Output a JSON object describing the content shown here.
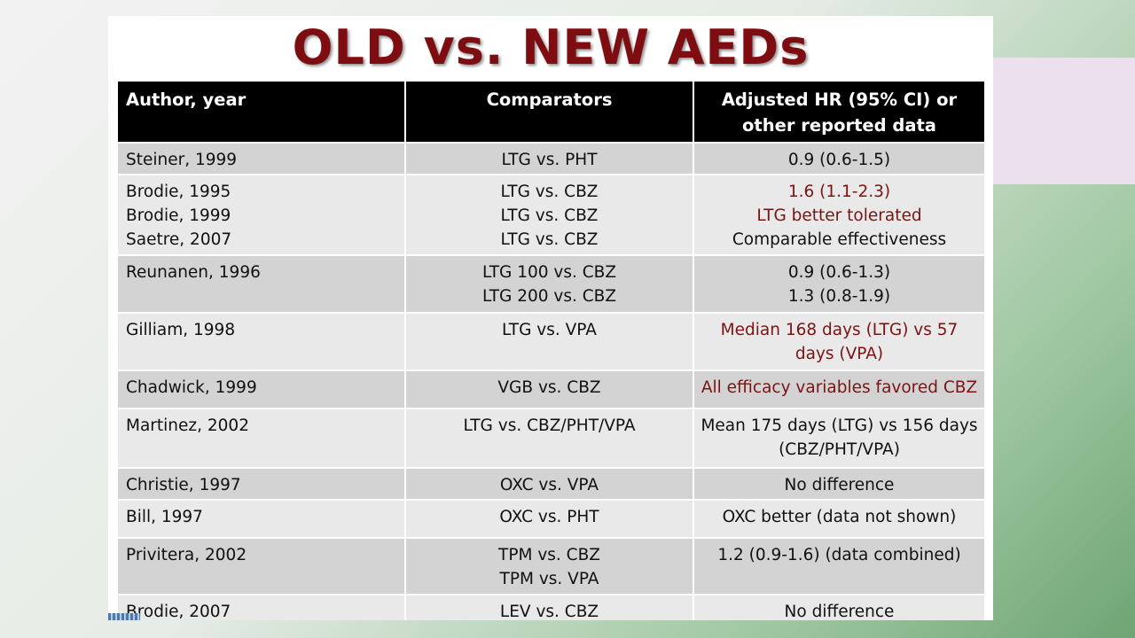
{
  "header": {
    "title": "OLD vs. NEW AEDs"
  },
  "table": {
    "headers": [
      [
        "Author, year"
      ],
      [
        "Comparators"
      ],
      [
        "Adjusted HR (95% CI) or",
        "other reported data"
      ]
    ],
    "rows": [
      {
        "author": [
          "Steiner, 1999"
        ],
        "comparators": [
          "LTG vs. PHT"
        ],
        "result": [
          {
            "text": "0.9 (0.6-1.5)",
            "color": "#111111"
          }
        ]
      },
      {
        "author": [
          "Brodie, 1995",
          "Brodie, 1999",
          "Saetre, 2007"
        ],
        "comparators": [
          "LTG vs. CBZ",
          "LTG vs. CBZ",
          "LTG vs. CBZ"
        ],
        "result": [
          {
            "text": "1.6 (1.1-2.3)",
            "color": "#7a1414"
          },
          {
            "text": "LTG better tolerated",
            "color": "#7a1414"
          },
          {
            "text": "Comparable effectiveness",
            "color": "#111111"
          }
        ]
      },
      {
        "author": [
          "Reunanen, 1996"
        ],
        "comparators": [
          "LTG 100 vs. CBZ",
          "LTG 200 vs. CBZ"
        ],
        "result": [
          {
            "text": "0.9 (0.6-1.3)",
            "color": "#111111"
          },
          {
            "text": "1.3 (0.8-1.9)",
            "color": "#111111"
          }
        ]
      },
      {
        "author": [
          "Gilliam, 1998"
        ],
        "comparators": [
          "LTG vs. VPA"
        ],
        "result": [
          {
            "text": "Median 168 days (LTG) vs 57",
            "color": "#7a1414"
          },
          {
            "text": "days (VPA)",
            "color": "#7a1414"
          }
        ]
      },
      {
        "author": [
          "Chadwick, 1999"
        ],
        "comparators": [
          "VGB vs. CBZ"
        ],
        "result": [
          {
            "text": "All efficacy variables favored CBZ",
            "color": "#7a1414"
          }
        ]
      },
      {
        "author": [
          "Martinez, 2002"
        ],
        "comparators": [
          "LTG vs. CBZ/PHT/VPA"
        ],
        "result": [
          {
            "text": "Mean 175 days (LTG) vs 156 days",
            "color": "#111111"
          },
          {
            "text": "(CBZ/PHT/VPA)",
            "color": "#111111"
          }
        ]
      },
      {
        "author": [
          "Christie, 1997"
        ],
        "comparators": [
          "OXC vs. VPA"
        ],
        "result": [
          {
            "text": "No difference",
            "color": "#111111"
          }
        ]
      },
      {
        "author": [
          "Bill, 1997"
        ],
        "comparators": [
          "OXC vs. PHT"
        ],
        "result": [
          {
            "text": "OXC better (data not shown)",
            "color": "#111111"
          }
        ]
      },
      {
        "author": [
          "Privitera, 2002"
        ],
        "comparators": [
          "TPM vs. CBZ",
          "TPM vs. VPA"
        ],
        "result": [
          {
            "text": "1.2 (0.9-1.6) (data combined)",
            "color": "#111111"
          }
        ]
      },
      {
        "author": [
          "Brodie, 2007"
        ],
        "comparators": [
          "LEV vs. CBZ"
        ],
        "result": [
          {
            "text": "No difference",
            "color": "#111111"
          }
        ]
      }
    ]
  }
}
